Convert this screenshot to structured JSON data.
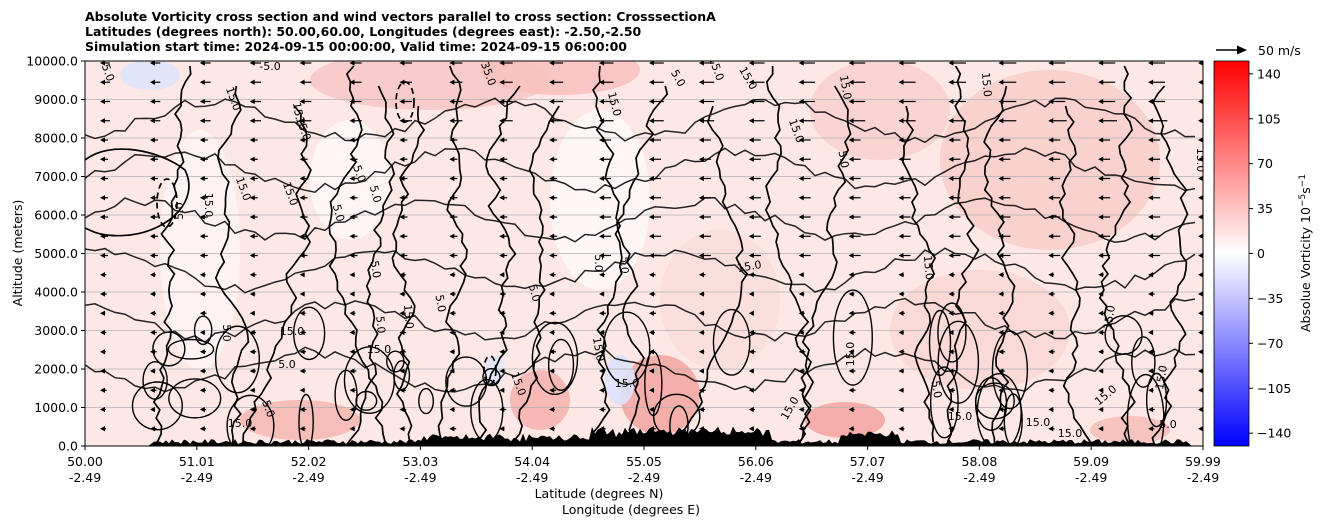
{
  "title_lines": [
    "Absolute Vorticity cross section and wind vectors parallel to cross section: CrosssectionA",
    "Latitudes (degrees north): 50.00,60.00, Longitudes (degrees east): -2.50,-2.50",
    "Simulation start time: 2024-09-15 00:00:00, Valid time: 2024-09-15 06:00:00"
  ],
  "chart_data": {
    "type": "heatmap",
    "title": "Absolute Vorticity cross section and wind vectors parallel to cross section: CrosssectionA",
    "ylabel": "Altitude (meters)",
    "xlabel_lines": [
      "Latitude (degrees N)",
      "Longitude (degrees E)"
    ],
    "ylim": [
      0,
      10000
    ],
    "xlim": [
      50.0,
      59.99
    ],
    "y_ticks": [
      "0.0",
      "1000.0",
      "2000.0",
      "3000.0",
      "4000.0",
      "5000.0",
      "6000.0",
      "7000.0",
      "8000.0",
      "9000.0",
      "10000.0"
    ],
    "x_ticks": [
      {
        "lat": "50.00",
        "lon": "-2.49"
      },
      {
        "lat": "51.01",
        "lon": "-2.49"
      },
      {
        "lat": "52.02",
        "lon": "-2.49"
      },
      {
        "lat": "53.03",
        "lon": "-2.49"
      },
      {
        "lat": "54.04",
        "lon": "-2.49"
      },
      {
        "lat": "55.05",
        "lon": "-2.49"
      },
      {
        "lat": "56.06",
        "lon": "-2.49"
      },
      {
        "lat": "57.07",
        "lon": "-2.49"
      },
      {
        "lat": "58.08",
        "lon": "-2.49"
      },
      {
        "lat": "59.09",
        "lon": "-2.49"
      },
      {
        "lat": "59.99",
        "lon": "-2.49"
      }
    ],
    "grid": "horizontal",
    "colorbar": {
      "label": "Absolue Vorticity 10",
      "label_exp": "−5",
      "label_unit": "s",
      "label_unit_exp": "−1",
      "range": [
        -150,
        150
      ],
      "ticks": [
        "140",
        "105",
        "70",
        "35",
        "0",
        "−35",
        "−70",
        "−105",
        "−140"
      ],
      "colors": [
        "#0000ff",
        "#ffffff",
        "#ff0000"
      ]
    },
    "wind_key": {
      "label": "50 m/s"
    },
    "contour_labels": [
      "5.0",
      "15.0",
      "25.0",
      "35.0",
      "-5.0"
    ]
  }
}
